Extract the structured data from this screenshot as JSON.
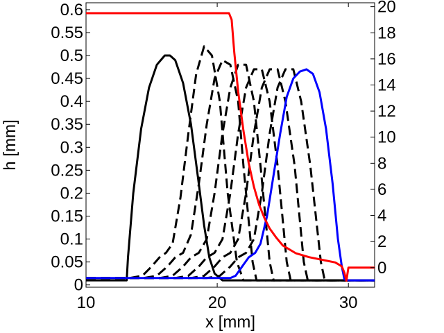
{
  "chart_data": {
    "type": "line",
    "title": "",
    "xlabel": "x [mm]",
    "ylabel": "h [mm]",
    "y2label": "",
    "xlim": [
      10,
      32
    ],
    "ylim": [
      -0.005,
      0.615
    ],
    "y2lim": [
      -1.5,
      20.3
    ],
    "xticks": [
      10,
      20,
      30
    ],
    "yticks": [
      0,
      0.05,
      0.1,
      0.15,
      0.2,
      0.25,
      0.3,
      0.35,
      0.4,
      0.45,
      0.5,
      0.55,
      0.6
    ],
    "ytick_labels": [
      "0",
      "0.05",
      "0.1",
      "0.15",
      "0.2",
      "0.25",
      "0.3",
      "0.35",
      "0.4",
      "0.45",
      "0.5",
      "0.55",
      "0.6"
    ],
    "y2ticks": [
      0,
      2,
      4,
      6,
      8,
      10,
      12,
      14,
      16,
      18,
      20
    ],
    "grid": false,
    "legend": "none",
    "colors": {
      "black": "#000000",
      "red": "#ff0000",
      "blue": "#0000ff"
    },
    "series": [
      {
        "axis": "left",
        "color": "#000000",
        "style": "solid",
        "x": [
          10,
          13.1,
          13.2,
          13.6,
          14.2,
          14.8,
          15.4,
          16.0,
          16.4,
          16.8,
          17.4,
          18.0,
          18.6,
          19.0,
          19.4,
          19.8,
          20.4,
          32
        ],
        "y": [
          0.01,
          0.01,
          0.06,
          0.2,
          0.34,
          0.43,
          0.48,
          0.5,
          0.5,
          0.49,
          0.44,
          0.35,
          0.22,
          0.13,
          0.06,
          0.025,
          0.01,
          0.01
        ]
      },
      {
        "axis": "left",
        "color": "#000000",
        "style": "dashed",
        "x": [
          10,
          13.3,
          14.3,
          15.0,
          15.6,
          16.1,
          16.6,
          17.2,
          17.8,
          18.4,
          19.0,
          19.6,
          20.2,
          20.8,
          21.5,
          22.0,
          32
        ],
        "y": [
          0.015,
          0.015,
          0.02,
          0.04,
          0.06,
          0.07,
          0.09,
          0.19,
          0.33,
          0.46,
          0.52,
          0.5,
          0.4,
          0.2,
          0.05,
          0.01,
          0.01
        ]
      },
      {
        "axis": "left",
        "color": "#000000",
        "style": "dashed",
        "x": [
          10,
          14.4,
          15.4,
          16.2,
          16.8,
          17.4,
          18.0,
          18.6,
          19.2,
          19.8,
          20.4,
          21.0,
          21.6,
          22.0,
          22.7,
          23.0,
          32
        ],
        "y": [
          0.015,
          0.015,
          0.02,
          0.04,
          0.06,
          0.07,
          0.11,
          0.22,
          0.35,
          0.45,
          0.49,
          0.48,
          0.4,
          0.26,
          0.05,
          0.01,
          0.01
        ]
      },
      {
        "axis": "left",
        "color": "#000000",
        "style": "dashed",
        "x": [
          10,
          15.6,
          16.6,
          17.4,
          18.0,
          18.6,
          19.2,
          19.8,
          20.4,
          21.0,
          21.6,
          22.2,
          22.8,
          23.3,
          24.0,
          24.3,
          32
        ],
        "y": [
          0.015,
          0.015,
          0.02,
          0.04,
          0.06,
          0.07,
          0.1,
          0.2,
          0.33,
          0.43,
          0.48,
          0.48,
          0.4,
          0.26,
          0.05,
          0.01,
          0.01
        ]
      },
      {
        "axis": "left",
        "color": "#000000",
        "style": "dashed",
        "x": [
          10,
          16.8,
          17.8,
          18.6,
          19.2,
          19.8,
          20.4,
          21.0,
          21.6,
          22.2,
          22.8,
          23.4,
          24.0,
          24.6,
          25.3,
          25.6,
          32
        ],
        "y": [
          0.015,
          0.015,
          0.02,
          0.04,
          0.06,
          0.07,
          0.1,
          0.2,
          0.33,
          0.43,
          0.47,
          0.47,
          0.4,
          0.26,
          0.05,
          0.01,
          0.01
        ]
      },
      {
        "axis": "left",
        "color": "#000000",
        "style": "dashed",
        "x": [
          10,
          18.0,
          19.0,
          19.8,
          20.4,
          21.0,
          21.6,
          22.2,
          22.8,
          23.4,
          24.0,
          24.6,
          25.2,
          25.9,
          26.6,
          26.9,
          32
        ],
        "y": [
          0.015,
          0.015,
          0.02,
          0.04,
          0.06,
          0.07,
          0.1,
          0.2,
          0.33,
          0.43,
          0.47,
          0.47,
          0.4,
          0.26,
          0.05,
          0.01,
          0.01
        ]
      },
      {
        "axis": "left",
        "color": "#000000",
        "style": "dashed",
        "x": [
          10,
          19.2,
          20.2,
          21.0,
          21.6,
          22.2,
          22.8,
          23.4,
          24.0,
          24.6,
          25.2,
          25.8,
          26.4,
          27.1,
          27.9,
          28.2,
          32
        ],
        "y": [
          0.015,
          0.015,
          0.02,
          0.04,
          0.06,
          0.07,
          0.1,
          0.2,
          0.33,
          0.43,
          0.47,
          0.47,
          0.4,
          0.26,
          0.05,
          0.01,
          0.01
        ]
      },
      {
        "axis": "left",
        "color": "#0000ff",
        "style": "solid",
        "x": [
          10,
          21.0,
          21.4,
          21.9,
          22.4,
          22.9,
          23.3,
          23.8,
          24.3,
          24.8,
          25.3,
          25.8,
          26.3,
          26.8,
          27.3,
          27.8,
          28.3,
          28.8,
          29.2,
          29.5,
          29.7,
          30.0,
          32
        ],
        "y": [
          0.015,
          0.015,
          0.02,
          0.04,
          0.06,
          0.07,
          0.09,
          0.15,
          0.24,
          0.33,
          0.41,
          0.45,
          0.465,
          0.47,
          0.46,
          0.42,
          0.34,
          0.22,
          0.1,
          0.04,
          0.012,
          0.01,
          0.01
        ]
      },
      {
        "axis": "right",
        "color": "#ff0000",
        "style": "solid",
        "x": [
          10,
          20.9,
          21.1,
          21.3,
          21.6,
          22.0,
          22.4,
          22.8,
          23.2,
          23.6,
          24.0,
          24.5,
          25.0,
          26.0,
          27.0,
          28.0,
          29.0,
          29.5,
          29.7,
          29.85,
          30.0,
          32
        ],
        "y": [
          19.5,
          19.5,
          19.0,
          16.5,
          13.5,
          10.5,
          8.0,
          6.2,
          4.8,
          3.8,
          3.0,
          2.3,
          1.7,
          1.1,
          0.8,
          0.6,
          0.4,
          0.1,
          -0.4,
          -1.0,
          0.0,
          0.0
        ]
      }
    ]
  }
}
